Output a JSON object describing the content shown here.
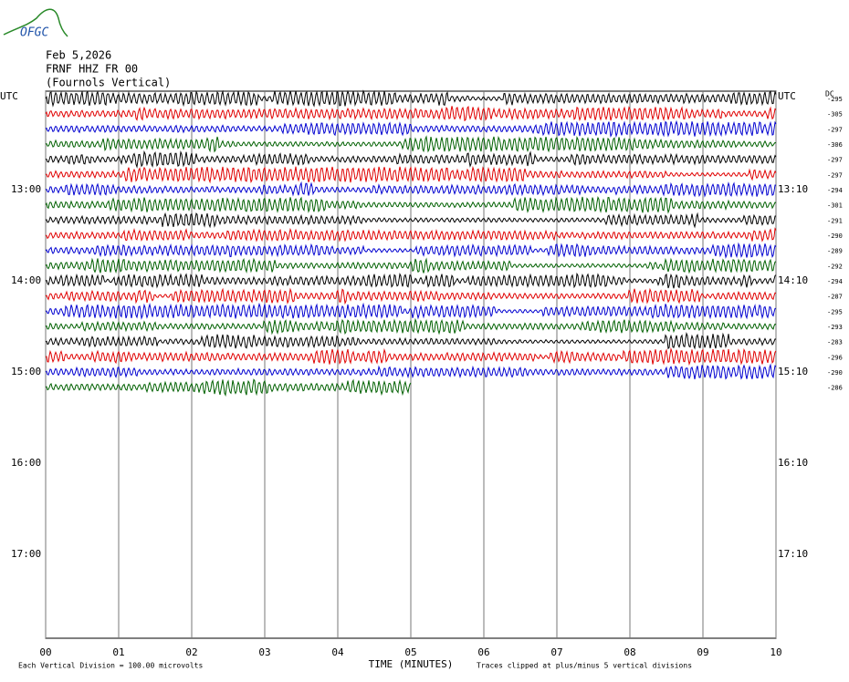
{
  "logo": "OFGC",
  "header": {
    "date": "Feb 5,2026",
    "station": "FRNF HHZ FR 00",
    "location": "(Fournols Vertical)"
  },
  "left_labels": [
    "UTC",
    "13:00",
    "14:00",
    "15:00",
    "16:00",
    "17:00"
  ],
  "right_labels": [
    "UTC",
    "13:10",
    "14:10",
    "15:10",
    "16:10",
    "17:10"
  ],
  "dc_header": "DC",
  "dc_offsets": [
    "-295",
    "-305",
    "-297",
    "-306",
    "-297",
    "-297",
    "-294",
    "-301",
    "-291",
    "-290",
    "-289",
    "-292",
    "-294",
    "-287",
    "-295",
    "-293",
    "-283",
    "-296",
    "-290",
    "-286"
  ],
  "x_axis": {
    "title": "TIME (MINUTES)",
    "ticks": [
      "00",
      "01",
      "02",
      "03",
      "04",
      "05",
      "06",
      "07",
      "08",
      "09",
      "10"
    ]
  },
  "footer": {
    "scale": "Each Vertical Division =  100.00 microvolts",
    "clip": "Traces clipped at plus/minus 5 vertical divisions"
  },
  "trace_colors": [
    "#000000",
    "#e00000",
    "#0000d0",
    "#006000"
  ]
}
